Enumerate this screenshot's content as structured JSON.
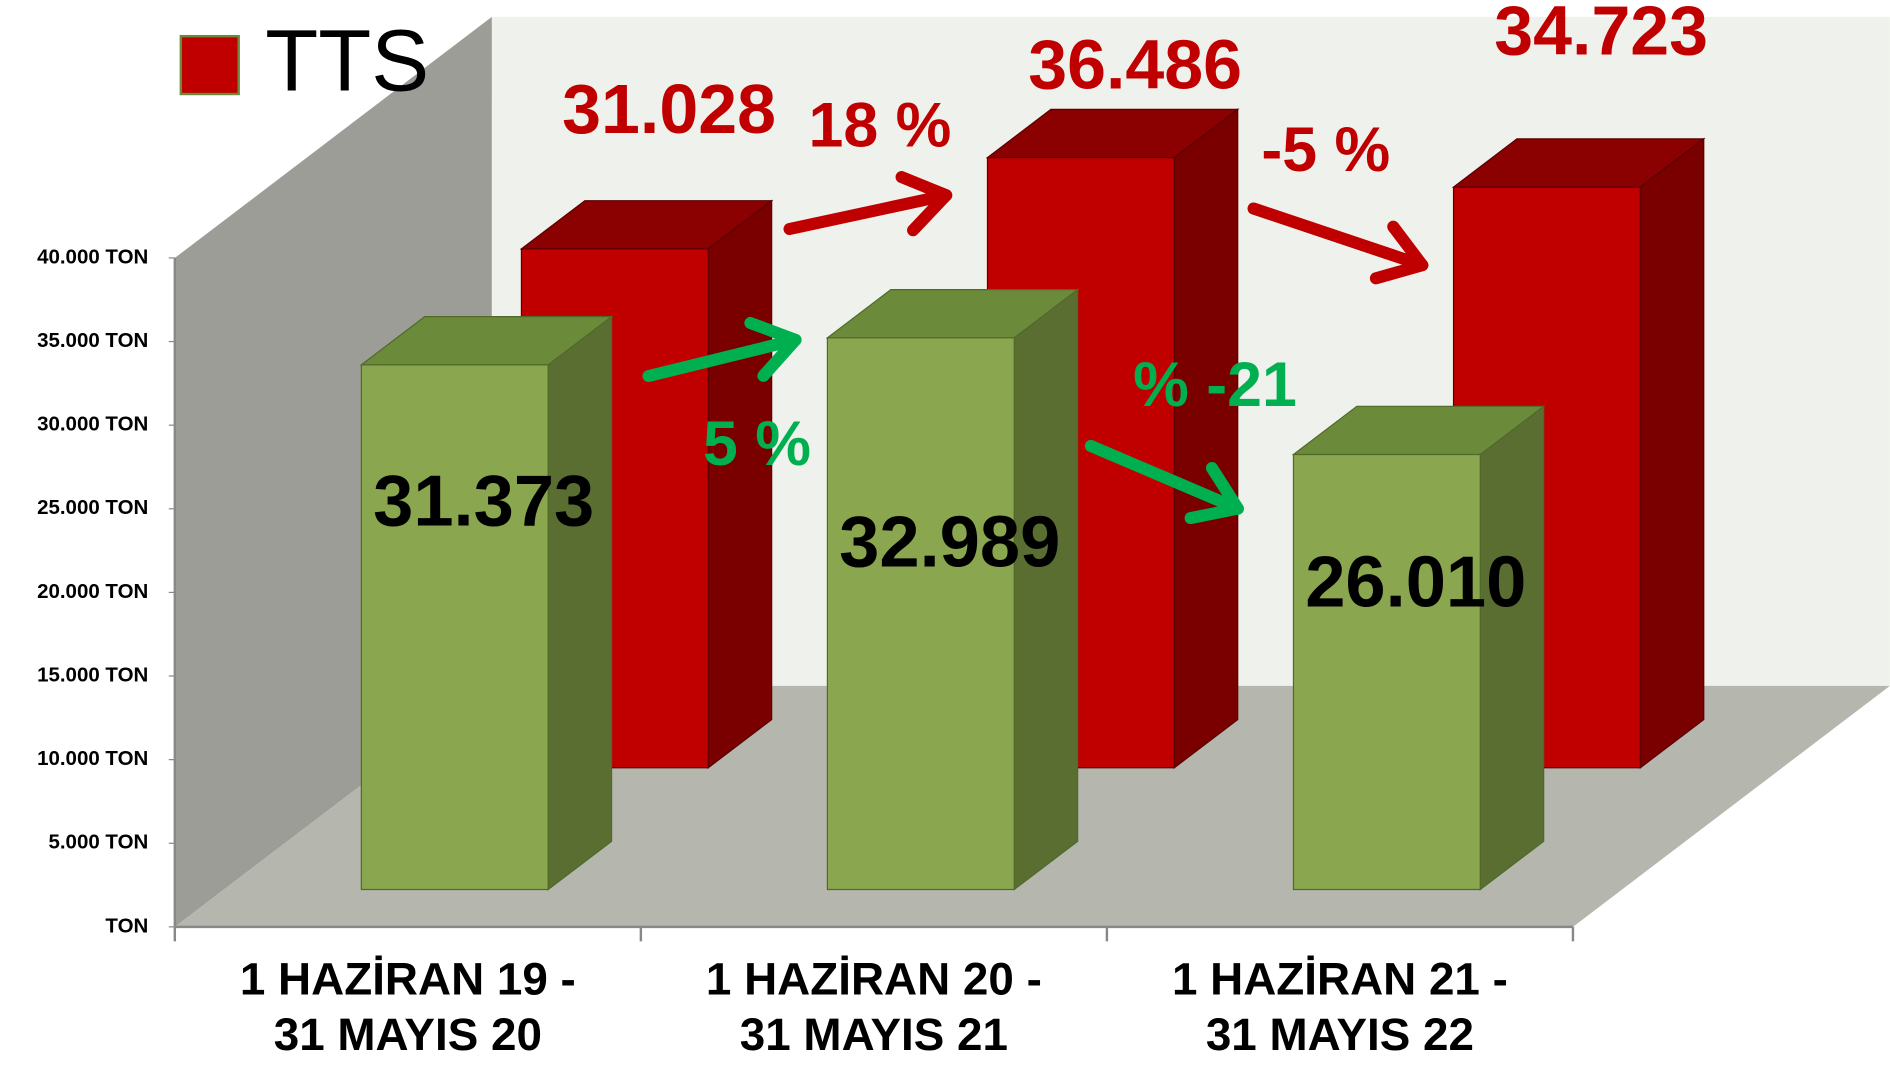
{
  "chart_data": {
    "type": "bar3d",
    "categories": [
      "1 HAZİRAN 19 -\n31 MAYIS 20",
      "1 HAZİRAN 20 -\n31 MAYIS 21",
      "1 HAZİRAN 21 -\n31 MAYIS 22"
    ],
    "series": [
      {
        "name": "TTS",
        "color": "#c00000",
        "values": [
          31028,
          36486,
          34723
        ],
        "value_labels": [
          "31.028",
          "36.486",
          "34.723"
        ]
      },
      {
        "color": "#8aa64e",
        "values": [
          31373,
          32989,
          26010
        ],
        "value_labels": [
          "31.373",
          "32.989",
          "26.010"
        ]
      }
    ],
    "ylim": [
      0,
      40000
    ],
    "yticks": [
      {
        "value": 0,
        "label": "TON"
      },
      {
        "value": 5000,
        "label": "5.000 TON"
      },
      {
        "value": 10000,
        "label": "10.000 TON"
      },
      {
        "value": 15000,
        "label": "15.000 TON"
      },
      {
        "value": 20000,
        "label": "20.000 TON"
      },
      {
        "value": 25000,
        "label": "25.000 TON"
      },
      {
        "value": 30000,
        "label": "30.000 TON"
      },
      {
        "value": 35000,
        "label": "35.000 TON"
      },
      {
        "value": 40000,
        "label": "40.000 TON"
      }
    ],
    "annotations": [
      "18 %",
      "-5 %",
      "5 %",
      "% -21"
    ],
    "legend": "top-left"
  }
}
